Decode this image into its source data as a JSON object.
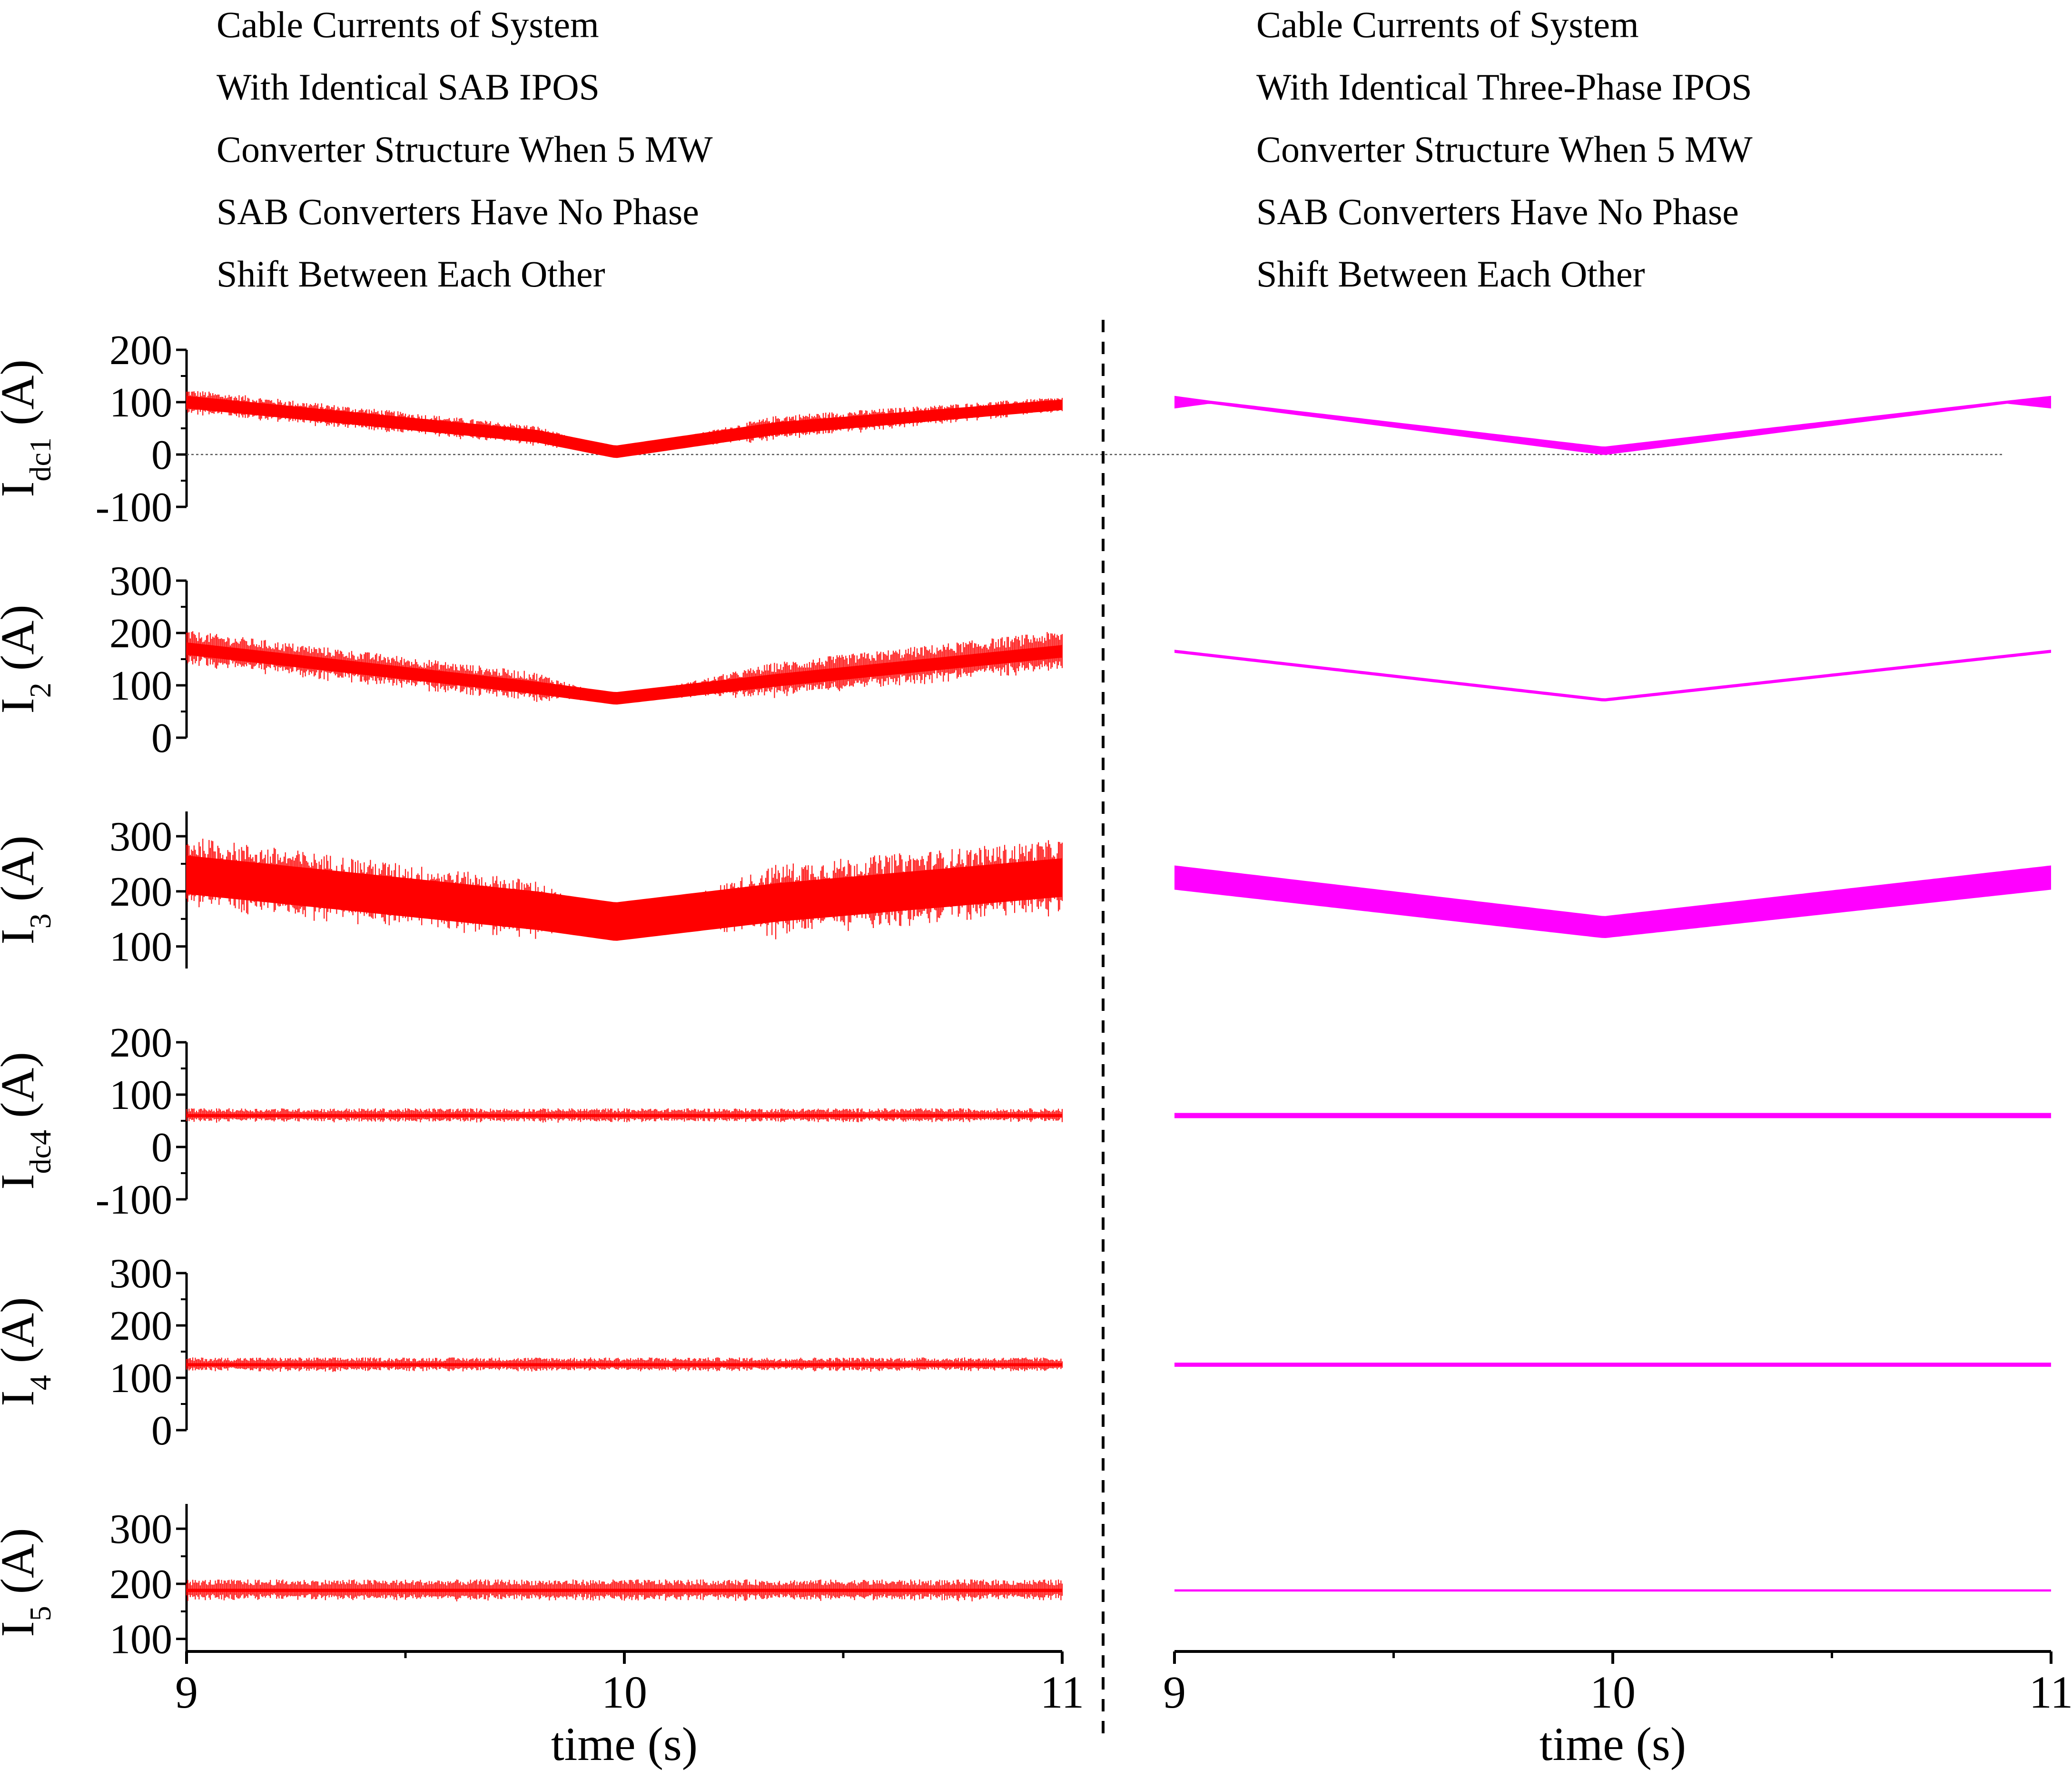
{
  "titles": {
    "left": [
      "Cable Currents of System",
      "With Identical SAB IPOS",
      "Converter Structure When 5 MW",
      "SAB Converters Have No Phase",
      "Shift Between Each Other"
    ],
    "right": [
      "Cable Currents of System",
      "With Identical Three-Phase IPOS",
      "Converter Structure When 5 MW",
      "SAB Converters Have No Phase",
      "Shift Between Each Other"
    ]
  },
  "colors": {
    "left_series": "#ff0000",
    "right_series": "#ff00ff",
    "axis": "#000000",
    "divider": "#000000",
    "zero_line": "#555555"
  },
  "chart_data": {
    "type": "line",
    "x": {
      "label": "time (s)",
      "range": [
        9,
        11
      ],
      "ticks": [
        "9",
        "10",
        "11"
      ],
      "tick_values": [
        9,
        10,
        11
      ],
      "minor_ticks": [
        9.5,
        10.5
      ]
    },
    "columns": [
      {
        "name": "SAB IPOS",
        "color": "#ff0000",
        "x_label": "time (s)"
      },
      {
        "name": "Three-Phase IPOS",
        "color": "#ff00ff",
        "x_label": "time (s)"
      }
    ],
    "panels": [
      {
        "ylabel_main": "I",
        "ylabel_sub": "dc1",
        "ylabel_unit": " (A)",
        "ylim": [
          -100,
          200
        ],
        "yticks": [
          "-100",
          "0",
          "100",
          "200"
        ],
        "ytick_values": [
          -100,
          0,
          100,
          200
        ],
        "zero_line": true,
        "left": {
          "t": [
            9.0,
            9.8,
            9.98,
            10.35,
            11.0
          ],
          "mean": [
            100,
            35,
            5,
            50,
            95
          ],
          "band": [
            12,
            12,
            12,
            12,
            10
          ],
          "noise": [
            25,
            20,
            0,
            25,
            15
          ]
        },
        "right": {
          "t": [
            9.0,
            9.08,
            9.98,
            10.9,
            11.0
          ],
          "mean": [
            100,
            100,
            7,
            100,
            100
          ],
          "band": [
            12,
            3,
            8,
            3,
            12
          ],
          "noise": [
            0,
            0,
            0,
            0,
            0
          ]
        }
      },
      {
        "ylabel_main": "I",
        "ylabel_sub": "2",
        "ylabel_unit": " (A)",
        "ylim": [
          0,
          300
        ],
        "yticks": [
          "0",
          "100",
          "200",
          "300"
        ],
        "ytick_values": [
          0,
          100,
          200,
          300
        ],
        "zero_line": false,
        "left": {
          "t": [
            9.0,
            9.8,
            9.98,
            10.35,
            11.0
          ],
          "mean": [
            170,
            95,
            75,
            110,
            165
          ],
          "band": [
            12,
            12,
            12,
            12,
            12
          ],
          "noise": [
            35,
            30,
            0,
            35,
            40
          ]
        },
        "right": {
          "t": [
            9.0,
            9.98,
            11.0
          ],
          "mean": [
            165,
            72,
            165
          ],
          "band": [
            3,
            3,
            3
          ],
          "noise": [
            0,
            0,
            0
          ]
        }
      },
      {
        "ylabel_main": "I",
        "ylabel_sub": "3",
        "ylabel_unit": " (A)",
        "ylim": [
          60,
          345
        ],
        "yticks": [
          "100",
          "200",
          "300"
        ],
        "ytick_values": [
          100,
          200,
          300
        ],
        "zero_line": false,
        "left": {
          "t": [
            9.0,
            9.8,
            9.98,
            10.35,
            11.0
          ],
          "mean": [
            230,
            165,
            145,
            180,
            225
          ],
          "band": [
            35,
            35,
            35,
            35,
            35
          ],
          "noise": [
            70,
            55,
            0,
            70,
            70
          ]
        },
        "right": {
          "t": [
            9.0,
            9.98,
            11.0
          ],
          "mean": [
            225,
            135,
            225
          ],
          "band": [
            22,
            20,
            22
          ],
          "noise": [
            0,
            0,
            0
          ]
        }
      },
      {
        "ylabel_main": "I",
        "ylabel_sub": "dc4",
        "ylabel_unit": " (A)",
        "ylim": [
          -100,
          200
        ],
        "yticks": [
          "-100",
          "0",
          "100",
          "200"
        ],
        "ytick_values": [
          -100,
          0,
          100,
          200
        ],
        "zero_line": false,
        "left": {
          "t": [
            9.0,
            11.0
          ],
          "mean": [
            60,
            60
          ],
          "band": [
            3,
            3
          ],
          "noise": [
            14,
            14
          ]
        },
        "right": {
          "t": [
            9.0,
            11.0
          ],
          "mean": [
            60,
            60
          ],
          "band": [
            5,
            5
          ],
          "noise": [
            0,
            0
          ]
        }
      },
      {
        "ylabel_main": "I",
        "ylabel_sub": "4",
        "ylabel_unit": " (A)",
        "ylim": [
          0,
          300
        ],
        "yticks": [
          "0",
          "100",
          "200",
          "300"
        ],
        "ytick_values": [
          0,
          100,
          200,
          300
        ],
        "zero_line": false,
        "left": {
          "t": [
            9.0,
            11.0
          ],
          "mean": [
            125,
            125
          ],
          "band": [
            3,
            3
          ],
          "noise": [
            14,
            14
          ]
        },
        "right": {
          "t": [
            9.0,
            11.0
          ],
          "mean": [
            125,
            125
          ],
          "band": [
            4,
            4
          ],
          "noise": [
            0,
            0
          ]
        }
      },
      {
        "ylabel_main": "I",
        "ylabel_sub": "5",
        "ylabel_unit": " (A)",
        "ylim": [
          60,
          345
        ],
        "yticks": [
          "100",
          "200",
          "300"
        ],
        "ytick_values": [
          100,
          200,
          300
        ],
        "zero_line": false,
        "left": {
          "t": [
            9.0,
            11.0
          ],
          "mean": [
            188,
            188
          ],
          "band": [
            3,
            3
          ],
          "noise": [
            20,
            20
          ]
        },
        "right": {
          "t": [
            9.0,
            11.0
          ],
          "mean": [
            188,
            188
          ],
          "band": [
            2,
            2
          ],
          "noise": [
            0,
            0
          ]
        }
      }
    ],
    "quiet_interval": [
      9.8,
      10.35
    ]
  }
}
